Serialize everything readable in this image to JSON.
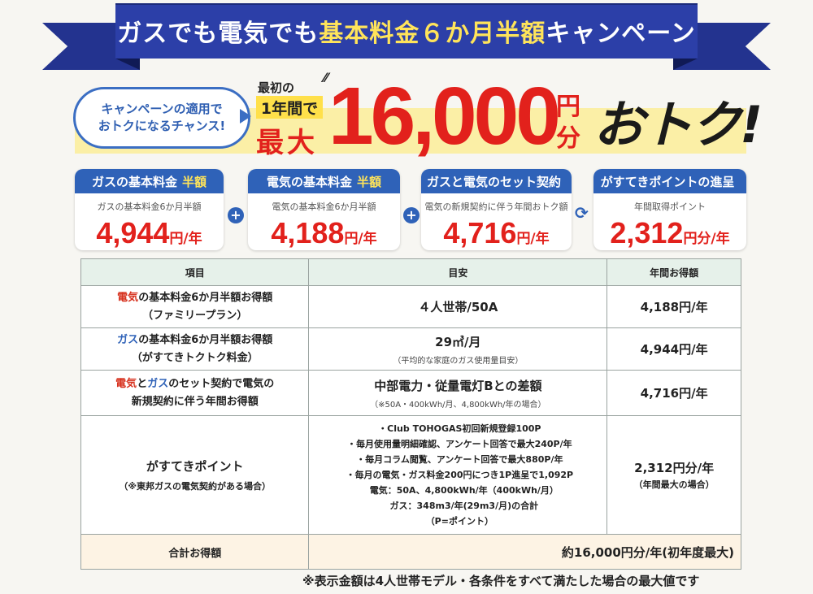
{
  "banner": {
    "title_prefix": "ガスでも電気でも",
    "title_highlight": "基本料金６か月半額",
    "title_suffix": "キャンペーン"
  },
  "hero": {
    "bubble_line1": "キャンペーンの適用で",
    "bubble_line2": "おトクになるチャンス!",
    "first_label": "最初の",
    "year_badge": "1年間で",
    "max_label": "最大",
    "amount": "16,000",
    "unit_yen": "円",
    "unit_fun": "分",
    "otoku": "おトク!"
  },
  "cards": [
    {
      "head": "ガスの基本料金",
      "head_hl": "半額",
      "sub": "ガスの基本料金6か月半額",
      "value": "4,944",
      "unit": "円/年"
    },
    {
      "head": "電気の基本料金",
      "head_hl": "半額",
      "sub": "電気の基本料金6か月半額",
      "value": "4,188",
      "unit": "円/年"
    },
    {
      "head": "ガスと電気のセット契約",
      "head_hl": "",
      "sub": "電気の新規契約に伴う年間おトク額",
      "value": "4,716",
      "unit": "円/年"
    },
    {
      "head": "がすてきポイントの進呈",
      "head_hl": "",
      "sub": "年間取得ポイント",
      "value": "2,312",
      "unit": "円分/年"
    }
  ],
  "operators": {
    "plus": "+",
    "arrow": "⟳"
  },
  "table": {
    "headers": [
      "項目",
      "目安",
      "年間お得額"
    ],
    "rows": [
      {
        "item_a_colored": "電気",
        "item_a_rest": "の基本料金6か月半額お得額",
        "item_b": "（ファミリープラン）",
        "guide": "４人世帯/50A",
        "guide_sub": "",
        "value": "4,188円/年"
      },
      {
        "item_a_colored": "ガス",
        "item_a_rest": "の基本料金6か月半額お得額",
        "item_b": "（がすてきトクトク料金）",
        "guide": "29㎥/月",
        "guide_sub": "（平均的な家庭のガス使用量目安）",
        "value": "4,944円/年"
      },
      {
        "item_a_colored": "電気",
        "item_a_mid": "と",
        "item_a_colored2": "ガス",
        "item_a_rest": "のセット契約で電気の",
        "item_b": "新規契約に伴う年間お得額",
        "guide": "中部電力・従量電灯Bとの差額",
        "guide_sub": "（※50A・400kWh/月、4,800kWh/年の場合）",
        "value": "4,716円/年"
      }
    ],
    "points_row": {
      "name": "がすてきポイント",
      "note": "（※東邦ガスの電気契約がある場合）",
      "lines": [
        "・Club TOHOGAS初回新規登録100P",
        "・毎月使用量明細確認、アンケート回答で最大240P/年",
        "・毎月コラム閲覧、アンケート回答で最大880P/年",
        "・毎月の電気・ガス料金200円につき1P進呈で1,092P",
        "　電気：50A、4,800kWh/年（400kWh/月）",
        "　ガス：348m3/年(29m3/月)の合計",
        "（P=ポイント）"
      ],
      "value": "2,312円分/年",
      "value_sub": "（年間最大の場合）"
    },
    "total": {
      "label": "合計お得額",
      "value": "約16,000円分/年(初年度最大)"
    }
  },
  "footnote": "※表示金額は4人世帯モデル・各条件をすべて満たした場合の最大値です",
  "colors": {
    "accent_blue": "#2f62b8",
    "banner_blue": "#2c3fa8",
    "red": "#e2211c",
    "yellow": "#ffe45a"
  }
}
